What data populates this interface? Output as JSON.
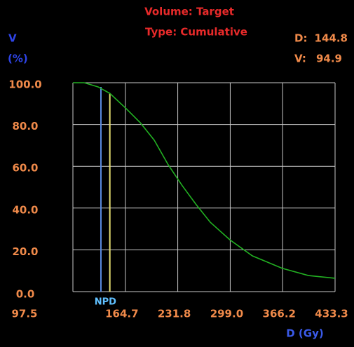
{
  "chart_data": {
    "type": "line",
    "title": "Volume: Target",
    "subtitle": "Type: Cumulative",
    "y_label_symbol": "V",
    "y_label_unit": "(%)",
    "x_label": "D (Gy)",
    "readout": {
      "dose_label": "D:",
      "volume_label": "V:"
    },
    "cursor": {
      "dose": 144.8,
      "volume": 94.9,
      "color": "#e8e070"
    },
    "reference_line": {
      "dose": 133.4,
      "label": "NPD",
      "color": "#5a8ae0",
      "label_color": "#60c0ff"
    },
    "x": [
      97.5,
      111.9,
      129.8,
      144.8,
      165.7,
      183.7,
      201.7,
      219.6,
      237.6,
      255.5,
      273.5,
      298.6,
      327.4,
      366.0,
      399.2,
      433.3
    ],
    "series": [
      {
        "name": "Target",
        "color": "#22b022",
        "values": [
          100,
          100,
          98.0,
          94.9,
          87.6,
          80.9,
          72.5,
          60.7,
          50.7,
          41.6,
          33.2,
          24.8,
          17.1,
          11.1,
          7.7,
          6.4
        ]
      }
    ],
    "xlim": [
      97.5,
      433.3
    ],
    "ylim": [
      0,
      100
    ],
    "xticks": [
      97.5,
      164.7,
      231.8,
      {
        "value": 299.0,
        "label": "299.0"
      },
      366.2,
      433.3
    ],
    "yticks": [
      {
        "value": 0,
        "label": "0.0"
      },
      {
        "value": 20,
        "label": "20.0"
      },
      {
        "value": 40,
        "label": "40.0"
      },
      {
        "value": 60,
        "label": "60.0"
      },
      {
        "value": 80,
        "label": "80.0"
      },
      {
        "value": 100,
        "label": "100.0"
      }
    ],
    "grid": true
  }
}
